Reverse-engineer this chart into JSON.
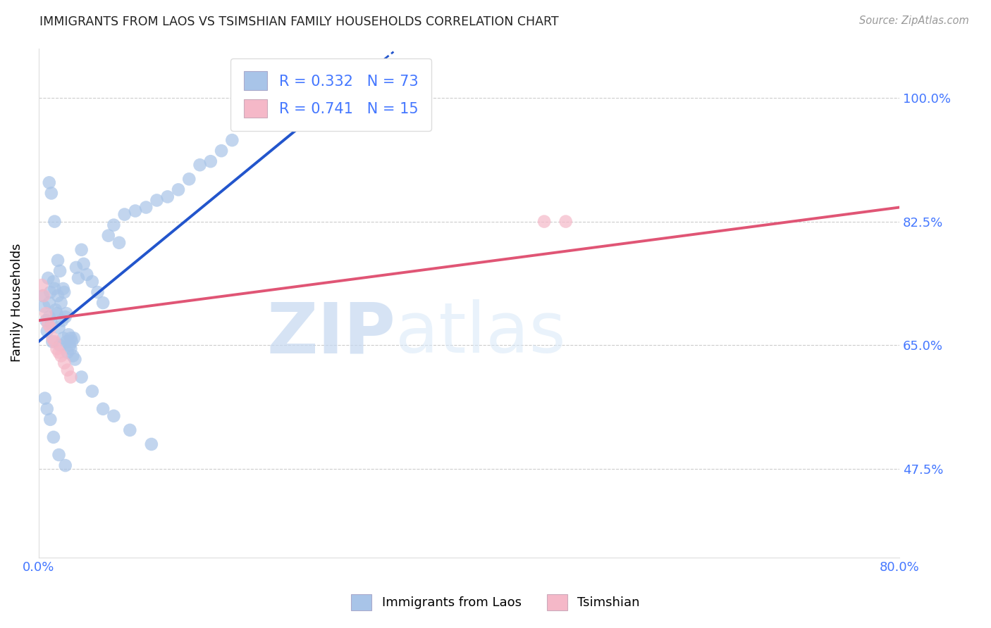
{
  "title": "IMMIGRANTS FROM LAOS VS TSIMSHIAN FAMILY HOUSEHOLDS CORRELATION CHART",
  "source": "Source: ZipAtlas.com",
  "ylabel": "Family Households",
  "xlim": [
    0.0,
    80.0
  ],
  "ylim": [
    35.0,
    107.0
  ],
  "yticks": [
    47.5,
    65.0,
    82.5,
    100.0
  ],
  "ytick_labels": [
    "47.5%",
    "65.0%",
    "82.5%",
    "100.0%"
  ],
  "blue_R": 0.332,
  "blue_N": 73,
  "pink_R": 0.741,
  "pink_N": 15,
  "blue_color": "#a8c4e8",
  "pink_color": "#f5b8c8",
  "blue_line_color": "#2255cc",
  "pink_line_color": "#e05575",
  "legend_label_blue": "Immigrants from Laos",
  "legend_label_pink": "Tsimshian",
  "watermark_zip": "ZIP",
  "watermark_atlas": "atlas",
  "blue_scatter_x": [
    0.4,
    0.5,
    0.7,
    0.8,
    0.9,
    1.0,
    1.0,
    1.1,
    1.2,
    1.3,
    1.4,
    1.5,
    1.6,
    1.7,
    1.8,
    1.9,
    2.0,
    2.1,
    2.2,
    2.3,
    2.4,
    2.5,
    2.6,
    2.7,
    2.8,
    2.9,
    3.0,
    3.1,
    3.2,
    3.3,
    3.5,
    3.7,
    4.0,
    4.2,
    4.5,
    5.0,
    5.5,
    6.0,
    6.5,
    7.0,
    7.5,
    8.0,
    9.0,
    10.0,
    11.0,
    12.0,
    13.0,
    14.0,
    15.0,
    16.0,
    17.0,
    18.0,
    1.0,
    1.2,
    1.5,
    1.8,
    2.0,
    2.3,
    2.6,
    3.0,
    3.4,
    4.0,
    5.0,
    6.0,
    7.0,
    8.5,
    10.5,
    0.6,
    0.8,
    1.1,
    1.4,
    1.9,
    2.5
  ],
  "blue_scatter_y": [
    72.0,
    70.5,
    68.5,
    67.0,
    74.5,
    71.0,
    69.0,
    72.5,
    68.0,
    65.5,
    74.0,
    73.0,
    70.0,
    69.5,
    72.0,
    67.5,
    65.0,
    71.0,
    68.5,
    66.0,
    72.5,
    69.0,
    65.5,
    64.0,
    66.5,
    65.0,
    64.5,
    65.5,
    63.5,
    66.0,
    76.0,
    74.5,
    78.5,
    76.5,
    75.0,
    74.0,
    72.5,
    71.0,
    80.5,
    82.0,
    79.5,
    83.5,
    84.0,
    84.5,
    85.5,
    86.0,
    87.0,
    88.5,
    90.5,
    91.0,
    92.5,
    94.0,
    88.0,
    86.5,
    82.5,
    77.0,
    75.5,
    73.0,
    69.5,
    66.0,
    63.0,
    60.5,
    58.5,
    56.0,
    55.0,
    53.0,
    51.0,
    57.5,
    56.0,
    54.5,
    52.0,
    49.5,
    48.0
  ],
  "pink_scatter_x": [
    0.3,
    0.5,
    0.7,
    0.9,
    1.1,
    1.3,
    1.5,
    1.7,
    1.9,
    2.1,
    2.4,
    2.7,
    3.0,
    47.0,
    49.0
  ],
  "pink_scatter_y": [
    73.5,
    72.0,
    69.5,
    68.0,
    67.5,
    66.0,
    65.5,
    64.5,
    64.0,
    63.5,
    62.5,
    61.5,
    60.5,
    82.5,
    82.5
  ],
  "blue_line_x0": 0.0,
  "blue_line_y0": 65.5,
  "blue_line_x1": 26.0,
  "blue_line_y1": 98.0,
  "blue_dash_x0": 26.0,
  "blue_dash_y0": 98.0,
  "blue_dash_x1": 33.0,
  "blue_dash_y1": 106.5,
  "pink_line_x0": 0.0,
  "pink_line_y0": 68.5,
  "pink_line_x1": 80.0,
  "pink_line_y1": 84.5
}
